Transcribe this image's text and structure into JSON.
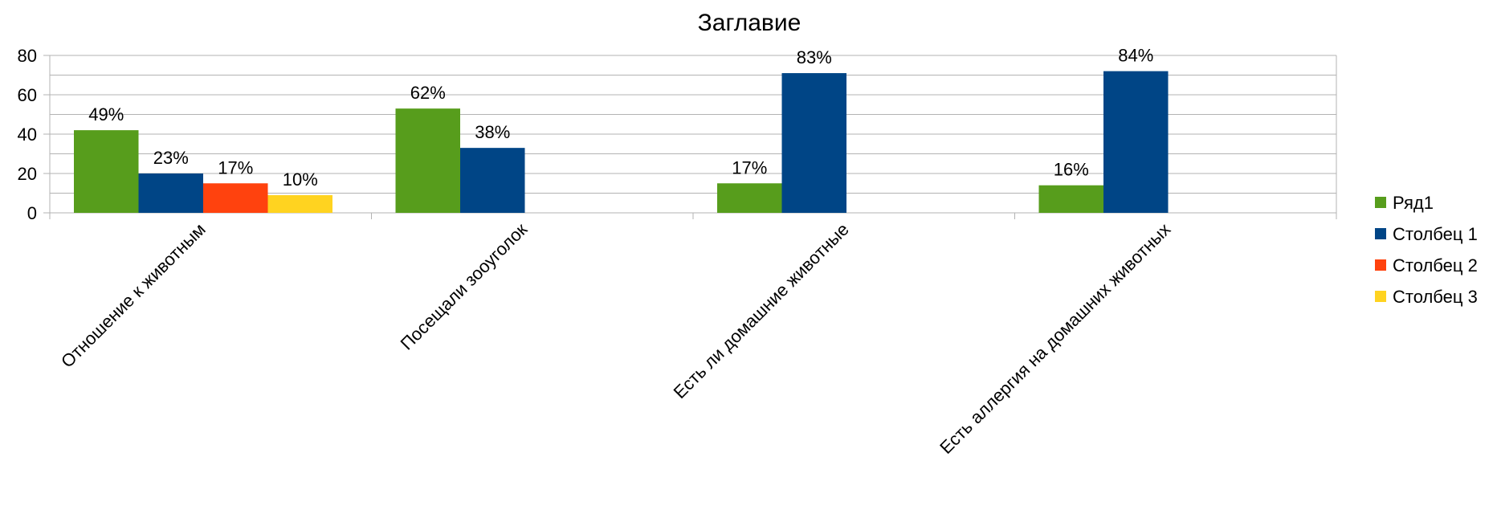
{
  "chart_data": {
    "type": "bar",
    "title": "Заглавие",
    "xlabel": "",
    "ylabel": "",
    "ylim": [
      0,
      80
    ],
    "yticks": [
      0,
      20,
      40,
      60,
      80
    ],
    "grid": true,
    "legend_position": "right",
    "categories": [
      "Отношение к животным",
      "Посещали зооуголок",
      "Есть ли домашние животные",
      "Есть аллергия на домашних животных"
    ],
    "series": [
      {
        "name": "Ряд1",
        "color": "#579d1c",
        "values": [
          42,
          53,
          15,
          14
        ],
        "labels": [
          "49%",
          "62%",
          "17%",
          "16%"
        ]
      },
      {
        "name": "Столбец 1",
        "color": "#004586",
        "values": [
          20,
          33,
          71,
          72
        ],
        "labels": [
          "23%",
          "38%",
          "83%",
          "84%"
        ]
      },
      {
        "name": "Столбец 2",
        "color": "#ff420e",
        "values": [
          15,
          null,
          null,
          null
        ],
        "labels": [
          "17%",
          null,
          null,
          null
        ]
      },
      {
        "name": "Столбец 3",
        "color": "#ffd320",
        "values": [
          9,
          null,
          null,
          null
        ],
        "labels": [
          "10%",
          null,
          null,
          null
        ]
      }
    ]
  }
}
